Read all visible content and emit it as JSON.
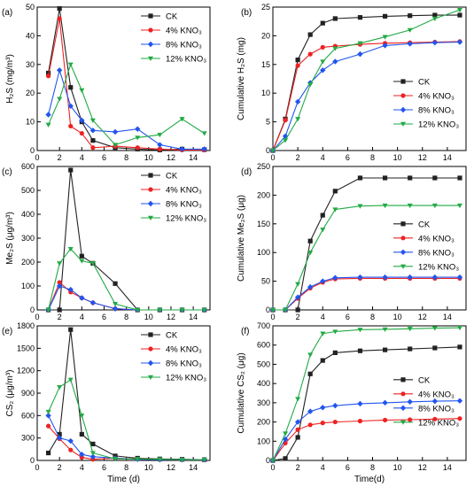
{
  "colors": {
    "CK": "#222222",
    "KNO3_4": "#ee2222",
    "KNO3_8": "#2255ee",
    "KNO3_12": "#22aa44"
  },
  "x_label": "Time (d)",
  "x_label_right": "Time(d)",
  "chart_data": [
    {
      "type": "line",
      "panel": "(a)",
      "ylabel": "H₂S (mg/m³)",
      "ylim": [
        0,
        50
      ],
      "yticks": [
        0,
        10,
        20,
        30,
        40,
        50
      ],
      "xlim": [
        0,
        15.5
      ],
      "xticks": [
        0,
        2,
        4,
        6,
        8,
        10,
        12,
        14
      ],
      "legend": "top-right",
      "series": [
        {
          "name": "CK",
          "x": [
            1,
            2,
            3,
            4,
            5,
            7,
            9,
            11,
            13,
            15
          ],
          "values": [
            27,
            49.5,
            22,
            10,
            3.5,
            1,
            0.5,
            0.2,
            0.5,
            0.3
          ]
        },
        {
          "name": "4% KNO₃",
          "x": [
            1,
            2,
            3,
            4,
            5,
            7,
            9,
            11,
            13,
            15
          ],
          "values": [
            26,
            46,
            8.5,
            6,
            1,
            1.5,
            1,
            0.5,
            0.2,
            0.2
          ]
        },
        {
          "name": "8% KNO₃",
          "x": [
            1,
            2,
            3,
            4,
            5,
            7,
            9,
            11,
            13,
            15
          ],
          "values": [
            12.5,
            28,
            15.5,
            10.5,
            7,
            6.5,
            7.5,
            2,
            0.5,
            0.5
          ]
        },
        {
          "name": "12% KNO₃",
          "x": [
            1,
            2,
            3,
            4,
            5,
            7,
            9,
            11,
            13,
            15
          ],
          "values": [
            9,
            18,
            30,
            21,
            10.5,
            2,
            4.5,
            5.5,
            11,
            6
          ]
        }
      ]
    },
    {
      "type": "line",
      "panel": "(b)",
      "ylabel": "Cumulative H₂S (mg)",
      "ylim": [
        0,
        25
      ],
      "yticks": [
        0,
        5,
        10,
        15,
        20,
        25
      ],
      "xlim": [
        0,
        15.5
      ],
      "xticks": [
        0,
        2,
        4,
        6,
        8,
        10,
        12,
        14
      ],
      "legend": "lower-right",
      "series": [
        {
          "name": "CK",
          "x": [
            0,
            1,
            2,
            3,
            4,
            5,
            7,
            9,
            11,
            13,
            15
          ],
          "values": [
            0,
            5.5,
            15.8,
            20.2,
            22.2,
            23,
            23.2,
            23.4,
            23.5,
            23.6,
            23.6
          ]
        },
        {
          "name": "4% KNO₃",
          "x": [
            0,
            1,
            2,
            3,
            4,
            5,
            7,
            9,
            11,
            13,
            15
          ],
          "values": [
            0,
            5.3,
            14.8,
            16.8,
            18,
            18.2,
            18.5,
            18.7,
            18.8,
            18.9,
            19
          ]
        },
        {
          "name": "8% KNO₃",
          "x": [
            0,
            1,
            2,
            3,
            4,
            5,
            7,
            9,
            11,
            13,
            15
          ],
          "values": [
            0,
            2.5,
            8.5,
            11.8,
            14,
            15.5,
            16.8,
            18.3,
            18.6,
            18.8,
            18.9
          ]
        },
        {
          "name": "12% KNO₃",
          "x": [
            0,
            1,
            2,
            3,
            4,
            5,
            7,
            9,
            11,
            13,
            15
          ],
          "values": [
            0,
            1.8,
            5.5,
            11.5,
            15.5,
            17.8,
            18.7,
            19.8,
            21,
            23,
            24.5
          ]
        }
      ]
    },
    {
      "type": "line",
      "panel": "(c)",
      "ylabel": "Me₂S (μg/m³)",
      "ylim": [
        0,
        600
      ],
      "yticks": [
        0,
        100,
        200,
        300,
        400,
        500,
        600
      ],
      "xlim": [
        0,
        15.5
      ],
      "xticks": [
        0,
        2,
        4,
        6,
        8,
        10,
        12,
        14
      ],
      "legend": "top-right",
      "series": [
        {
          "name": "CK",
          "x": [
            1,
            2,
            3,
            4,
            5,
            7,
            9,
            11,
            13,
            15
          ],
          "values": [
            0,
            0,
            585,
            225,
            195,
            110,
            0,
            0,
            0,
            0
          ]
        },
        {
          "name": "4% KNO₃",
          "x": [
            1,
            2,
            3,
            4,
            5,
            7,
            9,
            11,
            13,
            15
          ],
          "values": [
            0,
            115,
            75,
            50,
            30,
            5,
            0,
            0,
            0,
            0
          ]
        },
        {
          "name": "8% KNO₃",
          "x": [
            1,
            2,
            3,
            4,
            5,
            7,
            9,
            11,
            13,
            15
          ],
          "values": [
            0,
            100,
            85,
            50,
            30,
            5,
            0,
            0,
            0,
            0
          ]
        },
        {
          "name": "12% KNO₃",
          "x": [
            1,
            2,
            3,
            4,
            5,
            7,
            9,
            11,
            13,
            15
          ],
          "values": [
            0,
            195,
            255,
            205,
            195,
            25,
            0,
            0,
            0,
            0
          ]
        }
      ]
    },
    {
      "type": "line",
      "panel": "(d)",
      "ylabel": "Cumulative Me₂S (μg)",
      "ylim": [
        0,
        250
      ],
      "yticks": [
        0,
        50,
        100,
        150,
        200,
        250
      ],
      "xlim": [
        0,
        15.5
      ],
      "xticks": [
        0,
        2,
        4,
        6,
        8,
        10,
        12,
        14
      ],
      "legend": "right",
      "series": [
        {
          "name": "CK",
          "x": [
            0,
            1,
            2,
            3,
            4,
            5,
            7,
            9,
            11,
            13,
            15
          ],
          "values": [
            0,
            0,
            0,
            120,
            165,
            207,
            230,
            230,
            230,
            230,
            230
          ]
        },
        {
          "name": "4% KNO₃",
          "x": [
            0,
            1,
            2,
            3,
            4,
            5,
            7,
            9,
            11,
            13,
            15
          ],
          "values": [
            0,
            0,
            20,
            38,
            48,
            54,
            55,
            55,
            55,
            55,
            55
          ]
        },
        {
          "name": "8% KNO₃",
          "x": [
            0,
            1,
            2,
            3,
            4,
            5,
            7,
            9,
            11,
            13,
            15
          ],
          "values": [
            0,
            0,
            22,
            40,
            50,
            56,
            57,
            57,
            57,
            57,
            57
          ]
        },
        {
          "name": "12% KNO₃",
          "x": [
            0,
            1,
            2,
            3,
            4,
            5,
            7,
            9,
            11,
            13,
            15
          ],
          "values": [
            0,
            0,
            45,
            100,
            140,
            175,
            181,
            182,
            182,
            182,
            182
          ]
        }
      ]
    },
    {
      "type": "line",
      "panel": "(e)",
      "ylabel": "CS₂ (μg/m³)",
      "ylim": [
        0,
        1800
      ],
      "yticks": [
        0,
        300,
        600,
        900,
        1200,
        1500,
        1800
      ],
      "xlim": [
        0,
        15.5
      ],
      "xticks": [
        0,
        2,
        4,
        6,
        8,
        10,
        12,
        14
      ],
      "legend": "top-right",
      "series": [
        {
          "name": "CK",
          "x": [
            1,
            2,
            3,
            4,
            5,
            7,
            9,
            11,
            13,
            15
          ],
          "values": [
            100,
            350,
            1750,
            350,
            220,
            60,
            30,
            20,
            15,
            10
          ]
        },
        {
          "name": "4% KNO₃",
          "x": [
            1,
            2,
            3,
            4,
            5,
            7,
            9,
            11,
            13,
            15
          ],
          "values": [
            460,
            290,
            140,
            40,
            15,
            30,
            20,
            15,
            10,
            10
          ]
        },
        {
          "name": "8% KNO₃",
          "x": [
            1,
            2,
            3,
            4,
            5,
            7,
            9,
            11,
            13,
            15
          ],
          "values": [
            600,
            300,
            260,
            80,
            50,
            30,
            15,
            10,
            10,
            10
          ]
        },
        {
          "name": "12% KNO₃",
          "x": [
            1,
            2,
            3,
            4,
            5,
            7,
            9,
            11,
            13,
            15
          ],
          "values": [
            650,
            980,
            1080,
            600,
            100,
            20,
            20,
            15,
            10,
            10
          ]
        }
      ]
    },
    {
      "type": "line",
      "panel": "(f)",
      "ylabel": "Cumulative CS₂ (μg)",
      "ylim": [
        0,
        700
      ],
      "yticks": [
        0,
        100,
        200,
        300,
        400,
        500,
        600,
        700
      ],
      "xlim": [
        0,
        15.5
      ],
      "xticks": [
        0,
        2,
        4,
        6,
        8,
        10,
        12,
        14
      ],
      "legend": "right",
      "series": [
        {
          "name": "CK",
          "x": [
            0,
            1,
            2,
            3,
            4,
            5,
            7,
            9,
            11,
            13,
            15
          ],
          "values": [
            0,
            10,
            120,
            450,
            520,
            560,
            570,
            575,
            580,
            585,
            590
          ]
        },
        {
          "name": "4% KNO₃",
          "x": [
            0,
            1,
            2,
            3,
            4,
            5,
            7,
            9,
            11,
            13,
            15
          ],
          "values": [
            0,
            90,
            160,
            185,
            195,
            200,
            205,
            210,
            212,
            215,
            218
          ]
        },
        {
          "name": "8% KNO₃",
          "x": [
            0,
            1,
            2,
            3,
            4,
            5,
            7,
            9,
            11,
            13,
            15
          ],
          "values": [
            0,
            110,
            200,
            255,
            275,
            285,
            295,
            300,
            305,
            308,
            310
          ]
        },
        {
          "name": "12% KNO₃",
          "x": [
            0,
            1,
            2,
            3,
            4,
            5,
            7,
            9,
            11,
            13,
            15
          ],
          "values": [
            0,
            140,
            320,
            550,
            660,
            670,
            680,
            682,
            685,
            688,
            690
          ]
        }
      ]
    }
  ]
}
